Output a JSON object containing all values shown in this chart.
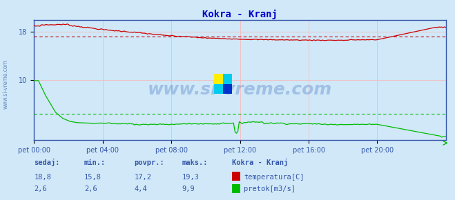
{
  "title": "Kokra - Kranj",
  "title_color": "#0000cc",
  "bg_color": "#d0e8f8",
  "x_tick_labels": [
    "pet 00:00",
    "pet 04:00",
    "pet 08:00",
    "pet 12:00",
    "pet 16:00",
    "pet 20:00"
  ],
  "x_ticks_norm": [
    0.0,
    0.1667,
    0.3333,
    0.5,
    0.6667,
    0.8333
  ],
  "temp_color": "#cc0000",
  "flow_color": "#00bb00",
  "temp_avg": 17.2,
  "flow_avg": 4.4,
  "ylim": [
    0,
    20
  ],
  "yticks": [
    10,
    18
  ],
  "grid_color": "#ffb0b0",
  "grid_color_h": "#ffb0b0",
  "watermark": "www.si-vreme.com",
  "footer_color": "#3355aa",
  "border_color": "#3355aa",
  "table_headers": [
    "sedaj:",
    "min.:",
    "povpr.:",
    "maks.:"
  ],
  "table_label": "Kokra - Kranj",
  "temp_row": [
    "18,8",
    "15,8",
    "17,2",
    "19,3"
  ],
  "flow_row": [
    "2,6",
    "2,6",
    "4,4",
    "9,9"
  ],
  "legend_temp": "temperatura[C]",
  "legend_flow": "pretok[m3/s]"
}
